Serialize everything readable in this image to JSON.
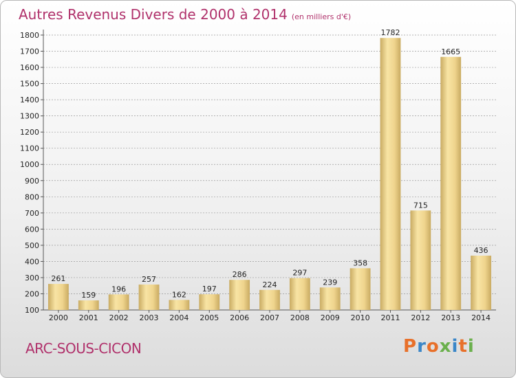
{
  "title": "Autres Revenus Divers de 2000 à 2014",
  "unit": "(en milliers d'€)",
  "commune": "ARC-SOUS-CICON",
  "brand": {
    "text": "Proxiti",
    "colors": [
      "#e8702a",
      "#3a86c8",
      "#e8702a",
      "#6ab04c",
      "#3a86c8",
      "#e8702a",
      "#6ab04c"
    ]
  },
  "colors": {
    "title": "#b0316b",
    "bar_light": "#f8e4a4",
    "bar_dark": "#c9ab62",
    "grid": "#9a9a9a"
  },
  "chart_data": {
    "type": "bar",
    "title": "Autres Revenus Divers de 2000 à 2014",
    "subtitle": "(en milliers d'€)",
    "xlabel": "",
    "ylabel": "",
    "categories": [
      "2000",
      "2001",
      "2002",
      "2003",
      "2004",
      "2005",
      "2006",
      "2007",
      "2008",
      "2009",
      "2010",
      "2011",
      "2012",
      "2013",
      "2014"
    ],
    "values": [
      261,
      159,
      196,
      257,
      162,
      197,
      286,
      224,
      297,
      239,
      358,
      1782,
      715,
      1665,
      436
    ],
    "ylim": [
      100,
      1800
    ],
    "yticks": [
      100,
      200,
      300,
      400,
      500,
      600,
      700,
      800,
      900,
      1000,
      1100,
      1200,
      1300,
      1400,
      1500,
      1600,
      1700,
      1800
    ],
    "grid": true,
    "legend": "none"
  }
}
